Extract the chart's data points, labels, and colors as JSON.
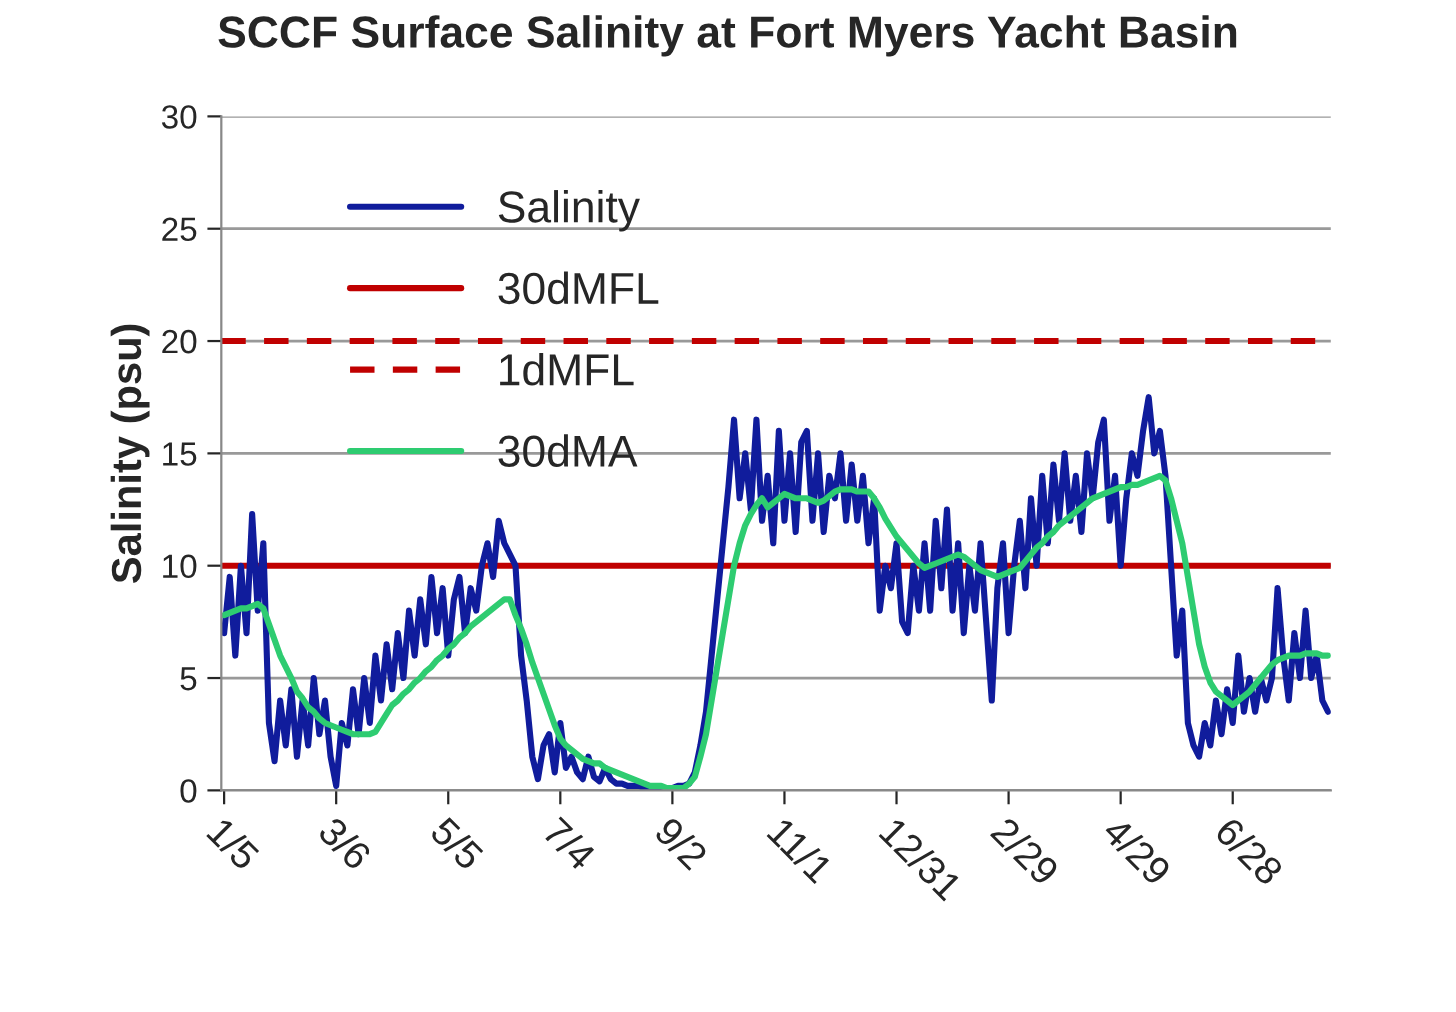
{
  "chart_data": {
    "type": "line",
    "title": "SCCF Surface Salinity at Fort Myers Yacht Basin",
    "ylabel": "Salinity (psu)",
    "categories": [
      "1/5",
      null,
      null,
      null,
      null,
      null,
      null,
      null,
      null,
      null,
      null,
      null,
      null,
      null,
      null,
      null,
      null,
      null,
      null,
      null,
      "3/6",
      null,
      null,
      null,
      null,
      null,
      null,
      null,
      null,
      null,
      null,
      null,
      null,
      null,
      null,
      null,
      null,
      null,
      null,
      null,
      "5/5",
      null,
      null,
      null,
      null,
      null,
      null,
      null,
      null,
      null,
      null,
      null,
      null,
      null,
      null,
      null,
      null,
      null,
      null,
      null,
      "7/4",
      null,
      null,
      null,
      null,
      null,
      null,
      null,
      null,
      null,
      null,
      null,
      null,
      null,
      null,
      null,
      null,
      null,
      null,
      null,
      "9/2",
      null,
      null,
      null,
      null,
      null,
      null,
      null,
      null,
      null,
      null,
      null,
      null,
      null,
      null,
      null,
      null,
      null,
      null,
      null,
      "11/1",
      null,
      null,
      null,
      null,
      null,
      null,
      null,
      null,
      null,
      null,
      null,
      null,
      null,
      null,
      null,
      null,
      null,
      null,
      null,
      "12/31",
      null,
      null,
      null,
      null,
      null,
      null,
      null,
      null,
      null,
      null,
      null,
      null,
      null,
      null,
      null,
      null,
      null,
      null,
      null,
      "2/29",
      null,
      null,
      null,
      null,
      null,
      null,
      null,
      null,
      null,
      null,
      null,
      null,
      null,
      null,
      null,
      null,
      null,
      null,
      null,
      "4/29",
      null,
      null,
      null,
      null,
      null,
      null,
      null,
      null,
      null,
      null,
      null,
      null,
      null,
      null,
      null,
      null,
      null,
      null,
      null,
      "6/28",
      null,
      null,
      null,
      null,
      null,
      null,
      null,
      null,
      null,
      null,
      null,
      null,
      null,
      null,
      null,
      null,
      null
    ],
    "ylim": [
      0,
      30
    ],
    "yticks": [
      0,
      5,
      10,
      15,
      20,
      25,
      30
    ],
    "grid": "y",
    "legend": "top left",
    "ref_lines": [
      {
        "axis": "y",
        "value": 10,
        "label": "30dMFL",
        "color": "#c00000",
        "line_style": "solid"
      },
      {
        "axis": "y",
        "value": 20,
        "label": "1dMFL",
        "color": "#c00000",
        "line_style": "dashed"
      }
    ],
    "series": [
      {
        "name": "Salinity",
        "color": "#101c9c",
        "line_style": "solid",
        "values": [
          7,
          9.5,
          6,
          10,
          7,
          12.3,
          8,
          11,
          3,
          1.3,
          4,
          2,
          4.5,
          1.5,
          4,
          2,
          5,
          2.5,
          4,
          1.5,
          0.2,
          3,
          2,
          4.5,
          2.5,
          5,
          3,
          6,
          4,
          6.5,
          4.5,
          7,
          5,
          8,
          6,
          8.5,
          6.5,
          9.5,
          7,
          9,
          6,
          8.5,
          9.5,
          7,
          9,
          8,
          10,
          11,
          9.5,
          12,
          11,
          10.5,
          10,
          6,
          4,
          1.5,
          0.5,
          2,
          2.5,
          0.8,
          3,
          1,
          1.5,
          0.8,
          0.5,
          1.5,
          0.6,
          0.4,
          1,
          0.5,
          0.3,
          0.3,
          0.2,
          0.2,
          0.2,
          0.1,
          0.1,
          0.1,
          0.1,
          0.1,
          0.1,
          0.2,
          0.2,
          0.3,
          0.8,
          2,
          3.5,
          6,
          8.5,
          11,
          13.5,
          16.5,
          13,
          15,
          12.5,
          16.5,
          12,
          14,
          11,
          16,
          12,
          15,
          11.5,
          15.5,
          16,
          12,
          15,
          11.5,
          14,
          13,
          15,
          12,
          14.5,
          12,
          14,
          11,
          13,
          8,
          10,
          9,
          11,
          7.5,
          7,
          10,
          8,
          11,
          8,
          12,
          9,
          12.5,
          8,
          11,
          7,
          10,
          8,
          11,
          7.5,
          4,
          9,
          11,
          7,
          10,
          12,
          9,
          13,
          10,
          14,
          11,
          14.5,
          12,
          15,
          12,
          14,
          11.5,
          15,
          13,
          15.5,
          16.5,
          12,
          14,
          10,
          13,
          15,
          14,
          16,
          17.5,
          15,
          16,
          14,
          10,
          6,
          8,
          3,
          2,
          1.5,
          3,
          2,
          4,
          2.5,
          4.5,
          3,
          6,
          3.5,
          5,
          3.5,
          5,
          4,
          5,
          9,
          6,
          4,
          7,
          5,
          8,
          5,
          6,
          4,
          3.5
        ]
      },
      {
        "name": "30dMA",
        "color": "#2ecc71",
        "line_style": "solid",
        "values": [
          7.8,
          7.9,
          8,
          8.1,
          8.1,
          8.2,
          8.3,
          8.1,
          7.4,
          6.7,
          6,
          5.5,
          5,
          4.4,
          4.1,
          3.7,
          3.5,
          3.2,
          3,
          2.9,
          2.8,
          2.7,
          2.6,
          2.5,
          2.5,
          2.5,
          2.5,
          2.6,
          3,
          3.4,
          3.8,
          4,
          4.3,
          4.5,
          4.8,
          5,
          5.3,
          5.5,
          5.8,
          6,
          6.3,
          6.5,
          6.8,
          7,
          7.3,
          7.5,
          7.7,
          7.9,
          8.1,
          8.3,
          8.5,
          8.5,
          7.8,
          7.2,
          6.5,
          5.7,
          5,
          4.3,
          3.6,
          2.9,
          2.3,
          2,
          1.8,
          1.6,
          1.4,
          1.3,
          1.2,
          1.2,
          1,
          0.9,
          0.8,
          0.7,
          0.6,
          0.5,
          0.4,
          0.3,
          0.2,
          0.2,
          0.2,
          0.1,
          0.1,
          0.1,
          0.1,
          0.3,
          0.6,
          1.5,
          2.5,
          4,
          5.5,
          7,
          8.5,
          10,
          11,
          11.8,
          12.3,
          12.7,
          13,
          12.6,
          12.8,
          13,
          13.2,
          13.1,
          13,
          13,
          13,
          12.9,
          12.8,
          12.9,
          13.1,
          13.3,
          13.4,
          13.4,
          13.4,
          13.3,
          13.3,
          13.3,
          13,
          12.6,
          12.1,
          11.7,
          11.3,
          11,
          10.7,
          10.4,
          10.1,
          9.9,
          10,
          10.1,
          10.2,
          10.3,
          10.4,
          10.5,
          10.4,
          10.2,
          10,
          9.8,
          9.7,
          9.6,
          9.5,
          9.6,
          9.7,
          9.8,
          9.9,
          10.2,
          10.5,
          10.8,
          11,
          11.3,
          11.5,
          11.8,
          12,
          12.2,
          12.4,
          12.6,
          12.8,
          13,
          13.1,
          13.2,
          13.3,
          13.4,
          13.5,
          13.5,
          13.6,
          13.6,
          13.7,
          13.8,
          13.9,
          14,
          13.8,
          13,
          12,
          11,
          9.5,
          8,
          6.5,
          5.5,
          4.8,
          4.4,
          4.2,
          4,
          3.8,
          4,
          4.2,
          4.4,
          4.7,
          5,
          5.3,
          5.6,
          5.8,
          5.9,
          6,
          6,
          6,
          6.1,
          6.1,
          6.1,
          6,
          6
        ]
      }
    ]
  }
}
